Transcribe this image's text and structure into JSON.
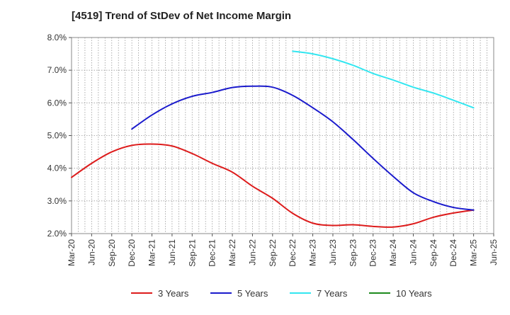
{
  "chart_data": {
    "type": "line",
    "title": "[4519]  Trend of StDev of Net Income Margin",
    "xlabel": "",
    "ylabel": "",
    "x_ticks": [
      "Mar-20",
      "Jun-20",
      "Sep-20",
      "Dec-20",
      "Mar-21",
      "Jun-21",
      "Sep-21",
      "Dec-21",
      "Mar-22",
      "Jun-22",
      "Sep-22",
      "Dec-22",
      "Mar-23",
      "Jun-23",
      "Sep-23",
      "Dec-23",
      "Mar-24",
      "Jun-24",
      "Sep-24",
      "Dec-24",
      "Mar-25",
      "Jun-25"
    ],
    "y_ticks": [
      "2.0%",
      "3.0%",
      "4.0%",
      "5.0%",
      "6.0%",
      "7.0%",
      "8.0%"
    ],
    "ylim": [
      2.0,
      8.0
    ],
    "y_unit": "%",
    "grid": true,
    "legend_position": "bottom",
    "series": [
      {
        "name": "3 Years",
        "color": "#dd1c1c",
        "x": [
          "Mar-20",
          "Jun-20",
          "Sep-20",
          "Dec-20",
          "Mar-21",
          "Jun-21",
          "Sep-21",
          "Dec-21",
          "Mar-22",
          "Jun-22",
          "Sep-22",
          "Dec-22",
          "Mar-23",
          "Jun-23",
          "Sep-23",
          "Dec-23",
          "Mar-24",
          "Jun-24",
          "Sep-24",
          "Dec-24",
          "Mar-25"
        ],
        "values": [
          3.72,
          4.15,
          4.5,
          4.7,
          4.74,
          4.68,
          4.45,
          4.15,
          3.88,
          3.45,
          3.08,
          2.62,
          2.32,
          2.25,
          2.27,
          2.22,
          2.2,
          2.3,
          2.5,
          2.63,
          2.72
        ]
      },
      {
        "name": "5 Years",
        "color": "#1a1acc",
        "x": [
          "Dec-20",
          "Mar-21",
          "Jun-21",
          "Sep-21",
          "Dec-21",
          "Mar-22",
          "Jun-22",
          "Sep-22",
          "Dec-22",
          "Mar-23",
          "Jun-23",
          "Sep-23",
          "Dec-23",
          "Mar-24",
          "Jun-24",
          "Sep-24",
          "Dec-24",
          "Mar-25"
        ],
        "values": [
          5.2,
          5.63,
          5.97,
          6.2,
          6.32,
          6.47,
          6.51,
          6.48,
          6.23,
          5.85,
          5.42,
          4.88,
          4.3,
          3.75,
          3.25,
          2.98,
          2.8,
          2.72
        ]
      },
      {
        "name": "7 Years",
        "color": "#33e6f0",
        "x": [
          "Dec-22",
          "Mar-23",
          "Jun-23",
          "Sep-23",
          "Dec-23",
          "Mar-24",
          "Jun-24",
          "Sep-24",
          "Dec-24",
          "Mar-25"
        ],
        "values": [
          7.58,
          7.5,
          7.35,
          7.15,
          6.9,
          6.7,
          6.48,
          6.3,
          6.08,
          5.85
        ]
      },
      {
        "name": "10 Years",
        "color": "#1e8a1e",
        "x": [],
        "values": []
      }
    ]
  }
}
